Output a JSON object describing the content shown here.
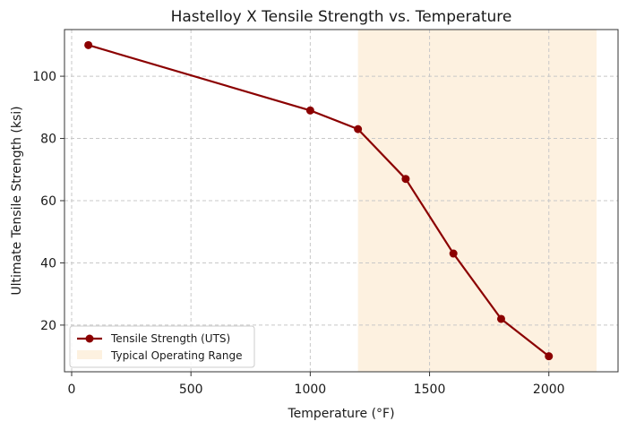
{
  "chart_data": {
    "type": "line",
    "title": "Hastelloy X Tensile Strength vs. Temperature",
    "xlabel": "Temperature (°F)",
    "ylabel": "Ultimate Tensile Strength (ksi)",
    "xlim": [
      -30,
      2290
    ],
    "ylim": [
      5,
      115
    ],
    "xticks": [
      0,
      500,
      1000,
      1500,
      2000
    ],
    "yticks": [
      20,
      40,
      60,
      80,
      100
    ],
    "grid": true,
    "series": [
      {
        "name": "Tensile Strength (UTS)",
        "color": "#8b0000",
        "x": [
          70,
          1000,
          1200,
          1400,
          1600,
          1800,
          2000
        ],
        "y": [
          110,
          89,
          83,
          67,
          43,
          22,
          10
        ]
      }
    ],
    "shaded_region": {
      "name": "Typical Operating Range",
      "x_range": [
        1200,
        2200
      ],
      "color": "#fdf1e0"
    },
    "legend": {
      "placement": "lower-left",
      "entries": [
        "Tensile Strength (UTS)",
        "Typical Operating Range"
      ]
    }
  }
}
